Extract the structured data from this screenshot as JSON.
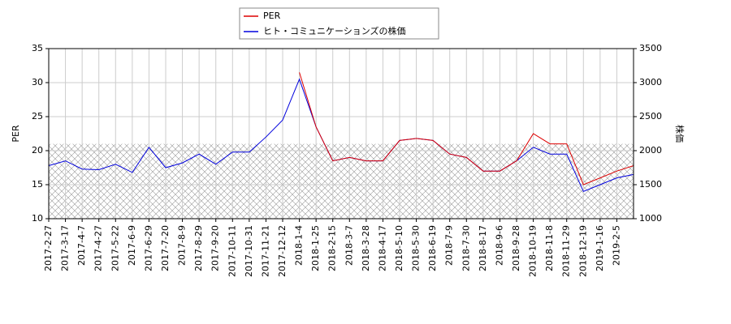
{
  "chart_data": {
    "type": "line",
    "y_label": "PER",
    "y2_label": "株価",
    "categories": [
      "2017-2-27",
      "2017-3-17",
      "2017-4-7",
      "2017-4-27",
      "2017-5-22",
      "2017-6-9",
      "2017-6-29",
      "2017-7-20",
      "2017-8-9",
      "2017-8-29",
      "2017-9-20",
      "2017-10-11",
      "2017-10-31",
      "2017-11-21",
      "2017-12-12",
      "2018-1-4",
      "2018-1-25",
      "2018-2-15",
      "2018-3-7",
      "2018-3-28",
      "2018-4-17",
      "2018-5-10",
      "2018-5-30",
      "2018-6-19",
      "2018-7-9",
      "2018-7-30",
      "2018-8-17",
      "2018-9-6",
      "2018-9-28",
      "2018-10-19",
      "2018-11-8",
      "2018-11-29",
      "2018-12-19",
      "2019-1-16",
      "2019-2-5",
      null
    ],
    "series": [
      {
        "name": "PER",
        "color": "#dd0000",
        "axis": "y",
        "values": [
          null,
          null,
          null,
          null,
          null,
          null,
          null,
          null,
          null,
          null,
          null,
          null,
          null,
          null,
          null,
          31.5,
          23.5,
          18.5,
          19.0,
          18.5,
          18.5,
          21.5,
          21.8,
          21.5,
          19.5,
          19.0,
          17.0,
          17.0,
          18.5,
          22.5,
          21.0,
          21.0,
          15.0,
          16.0,
          17.0,
          17.8
        ]
      },
      {
        "name": "ヒト・コミュニケーションズの株価",
        "color": "#0000dd",
        "axis": "y2",
        "values": [
          1780,
          1850,
          1730,
          1720,
          1800,
          1680,
          2050,
          1750,
          1820,
          1950,
          1800,
          1980,
          1980,
          2200,
          2450,
          3050,
          2350,
          1850,
          1900,
          1850,
          1850,
          2150,
          2180,
          2150,
          1950,
          1900,
          1700,
          1700,
          1850,
          2050,
          1950,
          1950,
          1400,
          1500,
          1600,
          1650
        ]
      }
    ],
    "ylim": [
      10,
      35
    ],
    "yticks": [
      10,
      15,
      20,
      25,
      30,
      35
    ],
    "y2lim": [
      1000,
      3500
    ],
    "y2ticks": [
      1000,
      1500,
      2000,
      2500,
      3000,
      3500
    ],
    "shaded_range": [
      10,
      21
    ],
    "grid": true
  }
}
